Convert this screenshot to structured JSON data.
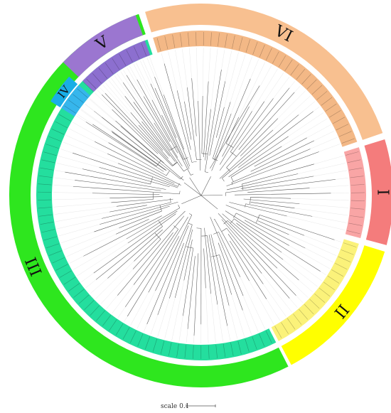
{
  "clades": [
    {
      "label": "I",
      "ring_color": "#f47c7c",
      "band_color": "#f9a5a5",
      "start_deg": 73,
      "end_deg": 105,
      "leaves": 11
    },
    {
      "label": "II",
      "ring_color": "#ffff00",
      "band_color": "#fbf27a",
      "start_deg": 107,
      "end_deg": 152,
      "leaves": 16
    },
    {
      "label": "III",
      "ring_color": "#2ee61e",
      "band_color": "#24de9e",
      "start_deg": 153,
      "end_deg": 341,
      "leaves": 66
    },
    {
      "label": "IV",
      "ring_color": "#1aaee6",
      "band_color": "#36b6ec",
      "start_deg": 302,
      "end_deg": 312,
      "leaves": 4
    },
    {
      "label": "V",
      "ring_color": "#9b76d0",
      "band_color": "#8c6fcf",
      "start_deg": 314,
      "end_deg": 340,
      "leaves": 9
    },
    {
      "label": "VI",
      "ring_color": "#f8c090",
      "band_color": "#f3b886",
      "start_deg": 343,
      "end_deg": 431,
      "leaves": 32
    }
  ],
  "scale": {
    "text": "scale 0.1"
  }
}
